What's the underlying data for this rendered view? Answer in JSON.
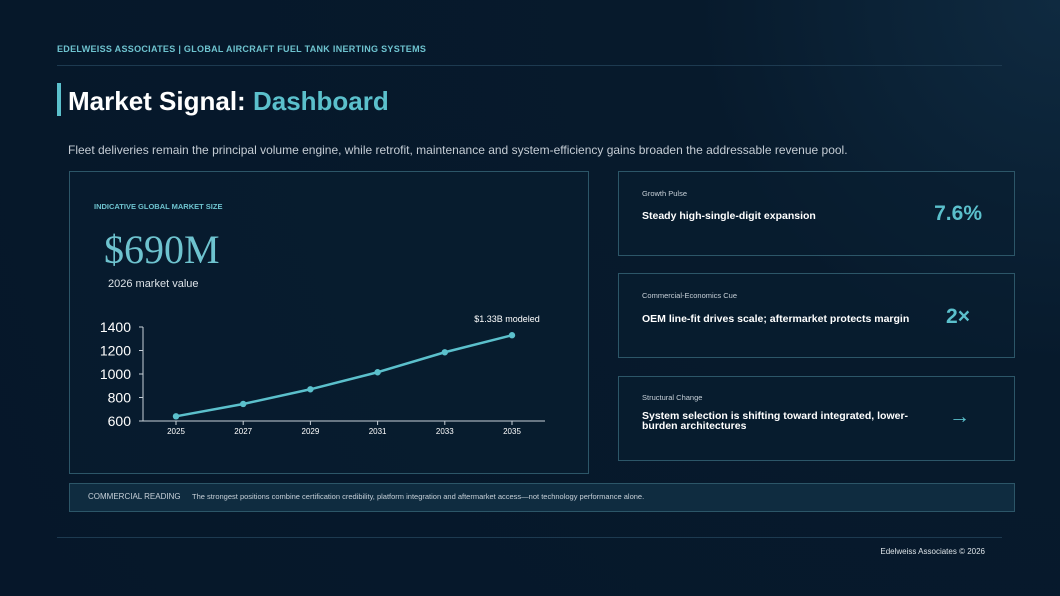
{
  "header": {
    "eyebrow": "EDELWEISS ASSOCIATES | GLOBAL AIRCRAFT FUEL TANK INERTING SYSTEMS",
    "title_lead": "Market Signal:",
    "title_accent": "Dashboard",
    "subtitle": "Fleet deliveries remain the principal volume engine, while retrofit, maintenance and system-efficiency gains broaden the addressable revenue pool."
  },
  "market_card": {
    "label": "INDICATIVE GLOBAL MARKET SIZE",
    "value": "$690M",
    "caption": "2026 market value"
  },
  "chart_data": {
    "type": "line",
    "categories": [
      "2025",
      "2027",
      "2029",
      "2031",
      "2033",
      "2035"
    ],
    "values": [
      640,
      745,
      870,
      1015,
      1185,
      1330
    ],
    "color": "#5bc0cc",
    "ylim": [
      600,
      1400
    ],
    "yticks": [
      600,
      800,
      1000,
      1200,
      1400
    ],
    "annotation": "$1.33B modeled"
  },
  "cards": [
    {
      "kicker": "Growth Pulse",
      "text": "Steady high-single-digit expansion",
      "metric": "7.6%"
    },
    {
      "kicker": "Commercial-Economics Cue",
      "text": "OEM line-fit drives scale; aftermarket protects margin",
      "metric": "2×"
    },
    {
      "kicker": "Structural Change",
      "text": "System selection is shifting toward integrated, lower-burden architectures",
      "metric": "→"
    }
  ],
  "reading": {
    "label": "COMMERCIAL READING",
    "text": "The strongest positions combine certification credibility, platform integration and aftermarket access—not technology performance alone."
  },
  "footer": "Edelweiss Associates © 2026"
}
